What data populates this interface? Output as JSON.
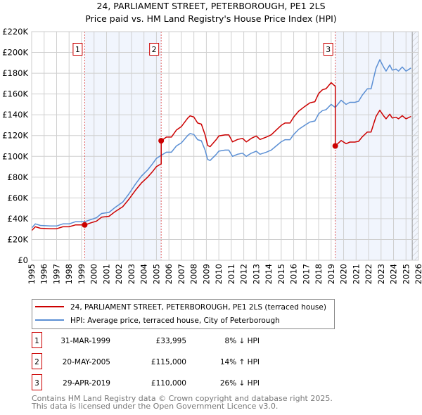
{
  "chart_data": {
    "type": "line",
    "title": "24, PARLIAMENT STREET, PETERBOROUGH, PE1 2LS",
    "subtitle": "Price paid vs. HM Land Registry's House Price Index (HPI)",
    "xlim": [
      1995,
      2026
    ],
    "ylim": [
      0,
      220000
    ],
    "x_ticks": [
      "1995",
      "1996",
      "1997",
      "1998",
      "1999",
      "2000",
      "2001",
      "2002",
      "2003",
      "2004",
      "2005",
      "2006",
      "2007",
      "2008",
      "2009",
      "2010",
      "2011",
      "2012",
      "2013",
      "2014",
      "2015",
      "2016",
      "2017",
      "2018",
      "2019",
      "2020",
      "2021",
      "2022",
      "2023",
      "2024",
      "2025",
      "2026"
    ],
    "y_ticks": [
      {
        "v": 0,
        "label": "£0"
      },
      {
        "v": 20000,
        "label": "£20K"
      },
      {
        "v": 40000,
        "label": "£40K"
      },
      {
        "v": 60000,
        "label": "£60K"
      },
      {
        "v": 80000,
        "label": "£80K"
      },
      {
        "v": 100000,
        "label": "£100K"
      },
      {
        "v": 120000,
        "label": "£120K"
      },
      {
        "v": 140000,
        "label": "£140K"
      },
      {
        "v": 160000,
        "label": "£160K"
      },
      {
        "v": 180000,
        "label": "£180K"
      },
      {
        "v": 200000,
        "label": "£200K"
      },
      {
        "v": 220000,
        "label": "£220K"
      }
    ],
    "grid": true,
    "hatched_from": 2025.5,
    "series": [
      {
        "name": "24, PARLIAMENT STREET, PETERBOROUGH, PE1 2LS (terraced house)",
        "color": "#cc0000",
        "x": [
          1995.0,
          1995.3,
          1995.7,
          1996.5,
          1997.0,
          1997.5,
          1998.0,
          1998.5,
          1999.0,
          1999.25,
          1999.7,
          2000.2,
          2000.6,
          2001.2,
          2001.7,
          2002.3,
          2002.8,
          2003.3,
          2003.8,
          2004.3,
          2004.7,
          2005.0,
          2005.38,
          2005.38,
          2005.8,
          2006.2,
          2006.6,
          2007.0,
          2007.5,
          2007.7,
          2008.0,
          2008.3,
          2008.6,
          2008.9,
          2009.1,
          2009.3,
          2009.8,
          2010.0,
          2010.5,
          2010.8,
          2011.1,
          2011.5,
          2011.9,
          2012.2,
          2012.6,
          2013.0,
          2013.3,
          2013.8,
          2014.2,
          2014.6,
          2015.0,
          2015.3,
          2015.7,
          2016.0,
          2016.4,
          2016.9,
          2017.3,
          2017.7,
          2018.0,
          2018.3,
          2018.6,
          2019.0,
          2019.33,
          2019.33,
          2019.6,
          2019.8,
          2020.2,
          2020.5,
          2020.9,
          2021.2,
          2021.5,
          2021.9,
          2022.2,
          2022.4,
          2022.6,
          2022.9,
          2023.2,
          2023.4,
          2023.7,
          2023.9,
          2024.2,
          2024.4,
          2024.7,
          2025.0,
          2025.4
        ],
        "y": [
          28500,
          32200,
          30800,
          30300,
          30300,
          32200,
          32200,
          34000,
          34000,
          34000,
          35800,
          37700,
          41400,
          42300,
          46900,
          51500,
          58800,
          67100,
          74400,
          80000,
          85500,
          90100,
          92800,
          115000,
          118500,
          118500,
          125300,
          128700,
          136700,
          139000,
          137800,
          132100,
          131000,
          120700,
          110500,
          109300,
          116200,
          119600,
          120700,
          120700,
          113900,
          116200,
          117300,
          113900,
          117300,
          119600,
          116200,
          118500,
          120700,
          125300,
          129800,
          132100,
          132100,
          137800,
          143500,
          148100,
          151500,
          152600,
          160600,
          164000,
          165200,
          170900,
          167400,
          110000,
          113000,
          115200,
          112200,
          113700,
          113700,
          114400,
          118900,
          123400,
          123400,
          130900,
          138400,
          144400,
          139100,
          136100,
          140600,
          136900,
          137600,
          136100,
          139100,
          136100,
          138400
        ]
      },
      {
        "name": "HPI: Average price, terraced house, City of Peterborough",
        "color": "#5b8fd4",
        "x": [
          1995.0,
          1995.3,
          1995.7,
          1996.5,
          1997.0,
          1997.5,
          1998.0,
          1998.5,
          1999.0,
          1999.25,
          1999.7,
          2000.2,
          2000.6,
          2001.2,
          2001.7,
          2002.3,
          2002.8,
          2003.3,
          2003.8,
          2004.3,
          2004.7,
          2005.0,
          2005.38,
          2005.8,
          2006.2,
          2006.6,
          2007.0,
          2007.5,
          2007.7,
          2008.0,
          2008.3,
          2008.6,
          2008.9,
          2009.1,
          2009.3,
          2009.8,
          2010.0,
          2010.5,
          2010.8,
          2011.1,
          2011.5,
          2011.9,
          2012.2,
          2012.6,
          2013.0,
          2013.3,
          2013.8,
          2014.2,
          2014.6,
          2015.0,
          2015.3,
          2015.7,
          2016.0,
          2016.4,
          2016.9,
          2017.3,
          2017.7,
          2018.0,
          2018.3,
          2018.6,
          2019.0,
          2019.33,
          2019.6,
          2019.8,
          2020.2,
          2020.5,
          2020.9,
          2021.2,
          2021.5,
          2021.9,
          2022.2,
          2022.4,
          2022.6,
          2022.9,
          2023.2,
          2023.4,
          2023.7,
          2023.9,
          2024.2,
          2024.4,
          2024.7,
          2025.0,
          2025.4
        ],
        "y": [
          31000,
          35000,
          33500,
          33000,
          33000,
          35000,
          35000,
          37000,
          37000,
          37000,
          39000,
          41000,
          45000,
          46000,
          51000,
          56000,
          64000,
          73000,
          81000,
          87000,
          93000,
          98000,
          101000,
          104000,
          104000,
          110000,
          113000,
          120000,
          122000,
          121000,
          116000,
          115000,
          106000,
          97000,
          96000,
          102000,
          105000,
          106000,
          106000,
          100000,
          102000,
          103000,
          100000,
          103000,
          105000,
          102000,
          104000,
          106000,
          110000,
          114000,
          116000,
          116000,
          121000,
          126000,
          130000,
          133000,
          134000,
          141000,
          144000,
          145000,
          150000,
          147000,
          151000,
          154000,
          150000,
          152000,
          152000,
          153000,
          159000,
          165000,
          165000,
          175000,
          185000,
          193000,
          186000,
          182000,
          188000,
          183000,
          184000,
          182000,
          186000,
          182000,
          185000
        ]
      }
    ],
    "sales": [
      {
        "id": "1",
        "x": 1999.25,
        "price": 33995,
        "date": "31-MAR-1999",
        "price_label": "£33,995",
        "hpi_label": "8% ↓ HPI"
      },
      {
        "id": "2",
        "x": 2005.38,
        "price": 115000,
        "date": "20-MAY-2005",
        "price_label": "£115,000",
        "hpi_label": "14% ↑ HPI"
      },
      {
        "id": "3",
        "x": 2019.33,
        "price": 110000,
        "date": "29-APR-2019",
        "price_label": "£110,000",
        "hpi_label": "26% ↓ HPI"
      }
    ],
    "shaded_ranges": [
      [
        1999.25,
        2005.38
      ],
      [
        2019.33,
        2026
      ]
    ],
    "legend_placement": "below"
  },
  "footer": {
    "line1": "Contains HM Land Registry data © Crown copyright and database right 2025.",
    "line2": "This data is licensed under the Open Government Licence v3.0."
  }
}
